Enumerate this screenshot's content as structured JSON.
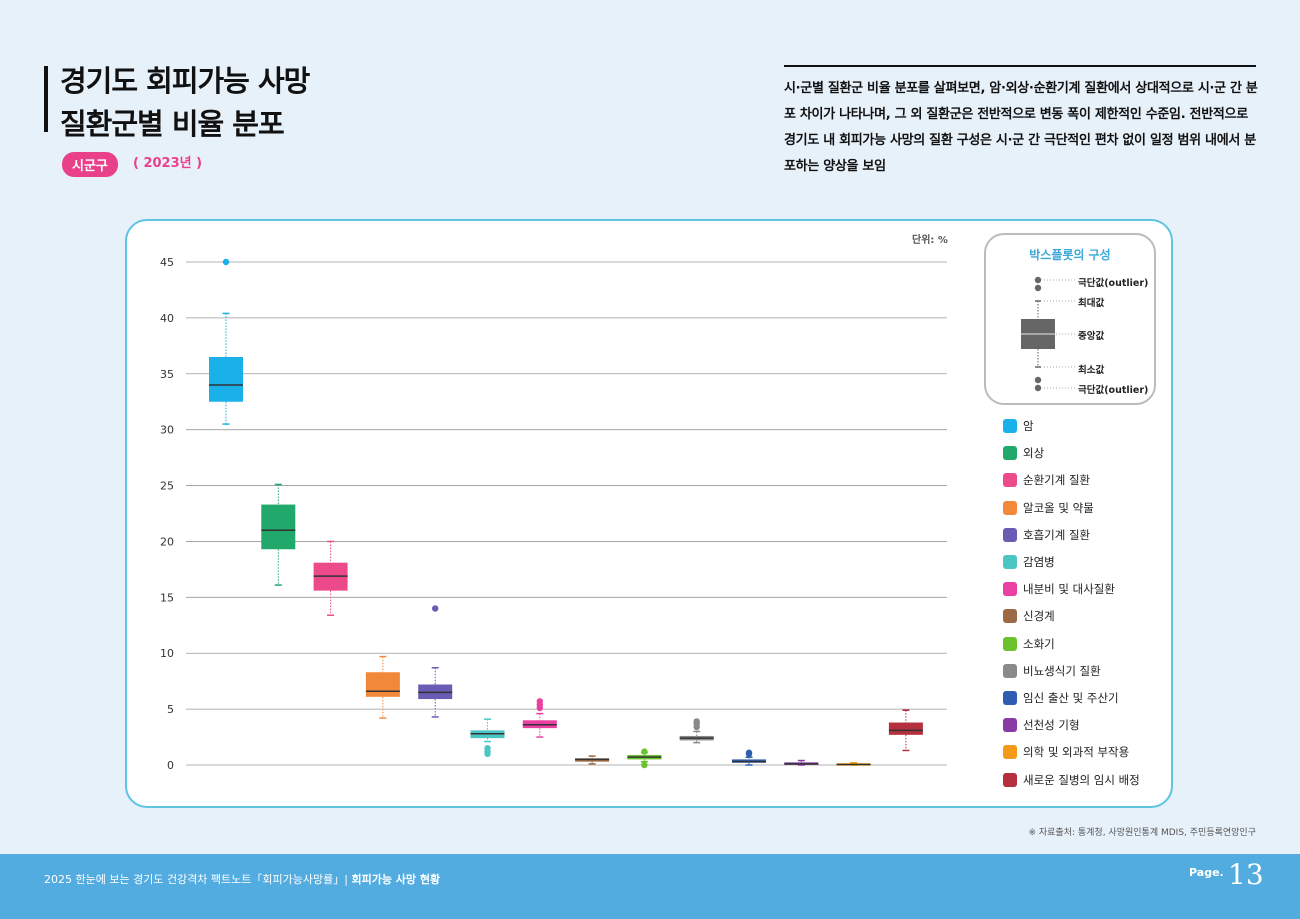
{
  "header": {
    "title_line1": "경기도 회피가능 사망",
    "title_line2": "질환군별 비율 분포",
    "region_badge": "시군구",
    "year": "( 2023년 )",
    "description": "시·군별 질환군 비율 분포를 살펴보면, 암·외상·순환기계 질환에서 상대적으로 시·군 간 분포 차이가 나타나며, 그 외 질환군은 전반적으로 변동 폭이 제한적인 수준임. 전반적으로 경기도 내 회피가능 사망의 질환 구성은 시·군 간 극단적인 편차 없이 일정 범위 내에서 분포하는 양상을 보임"
  },
  "chart": {
    "unit": "단위: %"
  },
  "boxplot_guide": {
    "title": "박스플롯의 구성",
    "outlier_top": "극단값(outlier)",
    "max": "최대값",
    "median": "중앙값",
    "min": "최소값",
    "outlier_bottom": "극단값(outlier)"
  },
  "chart_data": {
    "type": "boxplot",
    "ylim": [
      0,
      45
    ],
    "yticks": [
      0,
      5,
      10,
      15,
      20,
      25,
      30,
      35,
      40,
      45
    ],
    "unit": "%",
    "series": [
      {
        "name": "암",
        "color": "#1ab0ea",
        "min": 30.5,
        "q1": 32.5,
        "median": 34.0,
        "q3": 36.5,
        "max": 40.4,
        "outliers": [
          45.0
        ]
      },
      {
        "name": "외상",
        "color": "#20a96b",
        "min": 16.1,
        "q1": 19.3,
        "median": 21.0,
        "q3": 23.3,
        "max": 25.1,
        "outliers": []
      },
      {
        "name": "순환기계 질환",
        "color": "#ec4a8b",
        "min": 13.4,
        "q1": 15.6,
        "median": 16.9,
        "q3": 18.1,
        "max": 20.0,
        "outliers": []
      },
      {
        "name": "알코올 및 약물",
        "color": "#f2893a",
        "min": 4.2,
        "q1": 6.1,
        "median": 6.6,
        "q3": 8.3,
        "max": 9.7,
        "outliers": []
      },
      {
        "name": "호흡기계 질환",
        "color": "#6a5bb5",
        "min": 4.3,
        "q1": 5.9,
        "median": 6.5,
        "q3": 7.2,
        "max": 8.7,
        "outliers": [
          14.0
        ]
      },
      {
        "name": "감염병",
        "color": "#4cc6c3",
        "min": 2.1,
        "q1": 2.4,
        "median": 2.8,
        "q3": 3.1,
        "max": 4.1,
        "outliers": [
          1.5,
          1.2,
          1.0
        ]
      },
      {
        "name": "내분비 및 대사질환",
        "color": "#ea3fa3",
        "min": 2.5,
        "q1": 3.3,
        "median": 3.6,
        "q3": 4.0,
        "max": 4.6,
        "outliers": [
          5.1,
          5.4,
          5.7
        ]
      },
      {
        "name": "신경계",
        "color": "#9c6b45",
        "min": 0.1,
        "q1": 0.3,
        "median": 0.5,
        "q3": 0.6,
        "max": 0.8,
        "outliers": []
      },
      {
        "name": "소화기",
        "color": "#6bc22f",
        "min": 0.3,
        "q1": 0.5,
        "median": 0.7,
        "q3": 0.9,
        "max": 1.1,
        "outliers": [
          0.0,
          1.2
        ]
      },
      {
        "name": "비뇨생식기 질환",
        "color": "#8a8a8a",
        "min": 2.0,
        "q1": 2.2,
        "median": 2.4,
        "q3": 2.6,
        "max": 3.0,
        "outliers": [
          3.4,
          3.7,
          3.9
        ]
      },
      {
        "name": "임신 출산 및 주산기",
        "color": "#2d5cb0",
        "min": 0.0,
        "q1": 0.2,
        "median": 0.3,
        "q3": 0.5,
        "max": 0.7,
        "outliers": [
          1.0,
          1.1
        ]
      },
      {
        "name": "선천성 기형",
        "color": "#8a3aa5",
        "min": 0.0,
        "q1": 0.05,
        "median": 0.1,
        "q3": 0.2,
        "max": 0.4,
        "outliers": []
      },
      {
        "name": "의학 및 외과적 부작용",
        "color": "#f39b18",
        "min": 0.0,
        "q1": 0.0,
        "median": 0.05,
        "q3": 0.1,
        "max": 0.2,
        "outliers": []
      },
      {
        "name": "새로운 질병의 임시 배정",
        "color": "#b4303f",
        "min": 1.3,
        "q1": 2.7,
        "median": 3.1,
        "q3": 3.8,
        "max": 4.9,
        "outliers": []
      }
    ]
  },
  "source": "※ 자료출처: 통계청, 사망원인통계 MDIS, 주민등록연앙인구",
  "footer": {
    "text": "2025 한눈에 보는 경기도 건강격차 팩트노트「회피가능사망률」|",
    "section": "회피가능 사망 현황",
    "page_label": "Page.",
    "page_number": "13"
  }
}
